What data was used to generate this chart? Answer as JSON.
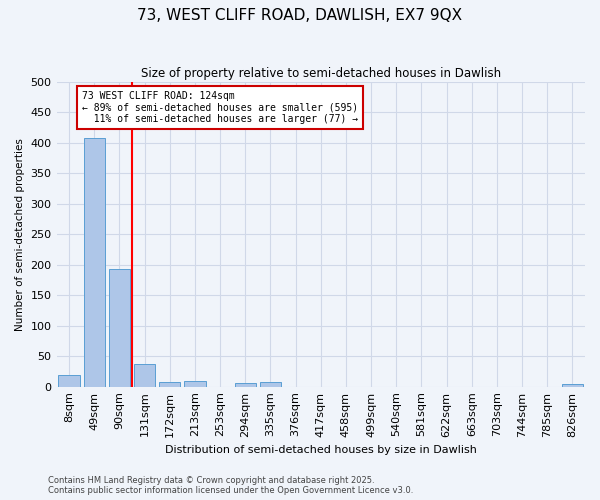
{
  "title": "73, WEST CLIFF ROAD, DAWLISH, EX7 9QX",
  "subtitle": "Size of property relative to semi-detached houses in Dawlish",
  "xlabel": "Distribution of semi-detached houses by size in Dawlish",
  "ylabel": "Number of semi-detached properties",
  "footer_line1": "Contains HM Land Registry data © Crown copyright and database right 2025.",
  "footer_line2": "Contains public sector information licensed under the Open Government Licence v3.0.",
  "bin_labels": [
    "8sqm",
    "49sqm",
    "90sqm",
    "131sqm",
    "172sqm",
    "213sqm",
    "253sqm",
    "294sqm",
    "335sqm",
    "376sqm",
    "417sqm",
    "458sqm",
    "499sqm",
    "540sqm",
    "581sqm",
    "622sqm",
    "663sqm",
    "703sqm",
    "744sqm",
    "785sqm",
    "826sqm"
  ],
  "bar_values": [
    19,
    407,
    193,
    37,
    8,
    10,
    0,
    6,
    7,
    0,
    0,
    0,
    0,
    0,
    0,
    0,
    0,
    0,
    0,
    0,
    5
  ],
  "bar_color": "#aec6e8",
  "bar_edge_color": "#5a9fd4",
  "grid_color": "#d0d8e8",
  "background_color": "#f0f4fa",
  "red_line_index": 3,
  "annotation_text": "73 WEST CLIFF ROAD: 124sqm\n← 89% of semi-detached houses are smaller (595)\n  11% of semi-detached houses are larger (77) →",
  "annotation_box_color": "#ffffff",
  "annotation_border_color": "#cc0000",
  "ylim": [
    0,
    500
  ],
  "yticks": [
    0,
    50,
    100,
    150,
    200,
    250,
    300,
    350,
    400,
    450,
    500
  ]
}
